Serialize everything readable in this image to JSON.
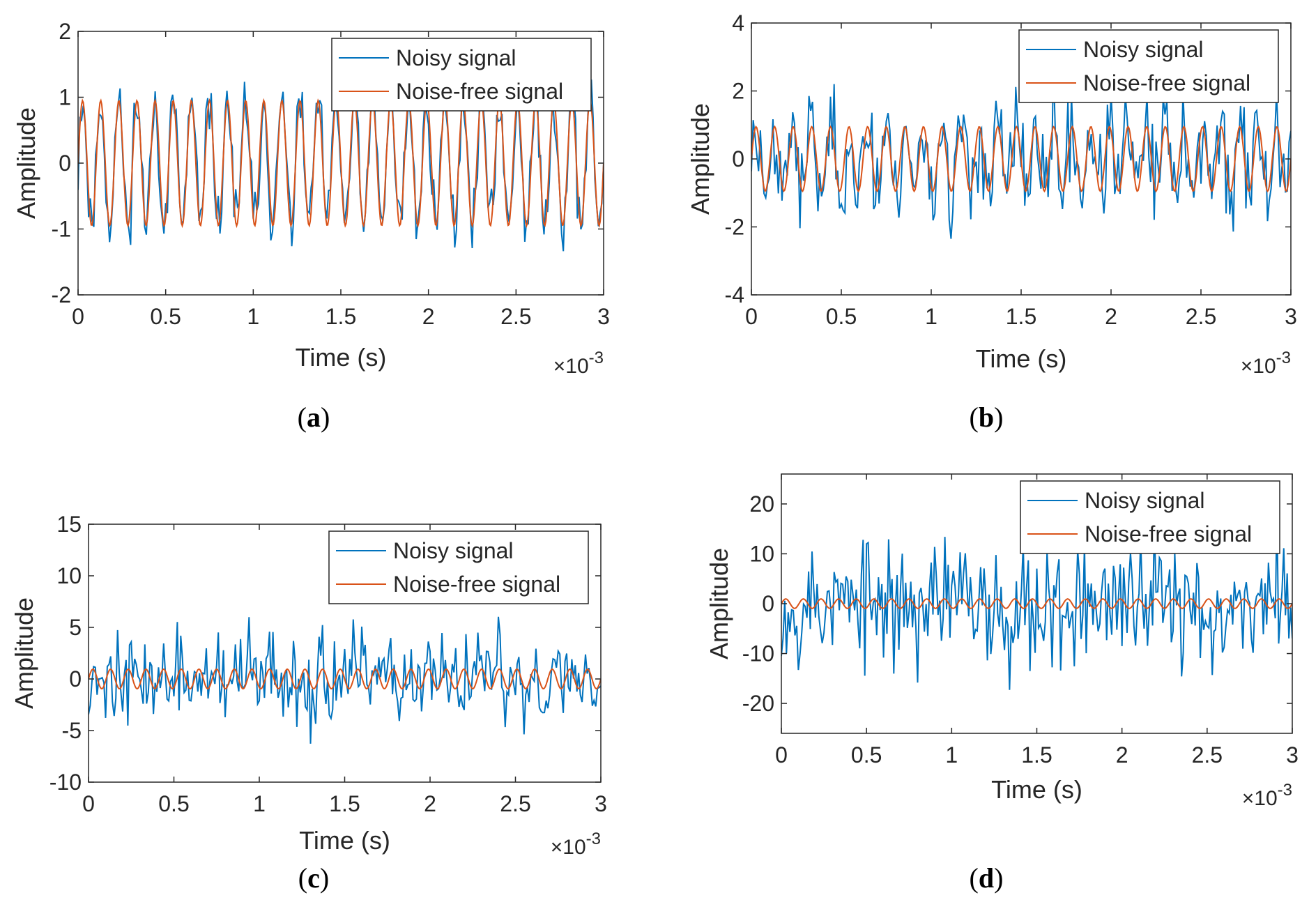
{
  "figure": {
    "subfigure_labels": [
      "a",
      "b",
      "c",
      "d"
    ]
  },
  "colors": {
    "noisy": "#0072BD",
    "clean": "#D95319",
    "axis": "#262626",
    "legend_border": "#262626"
  },
  "chart_data": [
    {
      "id": "a",
      "type": "line",
      "caption": "(a)",
      "xlabel": "Time (s)",
      "ylabel": "Amplitude",
      "xexponent": "×10",
      "xexponent_power": "-3",
      "xlim": [
        0,
        3
      ],
      "ylim": [
        -2,
        2
      ],
      "xticks": [
        0,
        0.5,
        1,
        1.5,
        2,
        2.5,
        3
      ],
      "xtick_labels": [
        "0",
        "0.5",
        "1",
        "1.5",
        "2",
        "2.5",
        "3"
      ],
      "yticks": [
        -2,
        -1,
        0,
        1,
        2
      ],
      "ytick_labels": [
        "-2",
        "-1",
        "0",
        "1",
        "2"
      ],
      "legend": {
        "entries": [
          "Noisy signal",
          "Noise-free signal"
        ],
        "location": "top-right"
      },
      "series": [
        {
          "name": "Noisy signal",
          "kind": "noisy",
          "noise_amplitude": 0.32,
          "n_points": 300,
          "seed": 11
        },
        {
          "name": "Noise-free signal",
          "kind": "clean",
          "amplitude": 0.95,
          "cycles": 29,
          "n_points": 600
        }
      ]
    },
    {
      "id": "b",
      "type": "line",
      "caption": "(b)",
      "xlabel": "Time (s)",
      "ylabel": "Amplitude",
      "xexponent": "×10",
      "xexponent_power": "-3",
      "xlim": [
        0,
        3
      ],
      "ylim": [
        -4,
        4
      ],
      "xticks": [
        0,
        0.5,
        1,
        1.5,
        2,
        2.5,
        3
      ],
      "xtick_labels": [
        "0",
        "0.5",
        "1",
        "1.5",
        "2",
        "2.5",
        "3"
      ],
      "yticks": [
        -4,
        -2,
        0,
        2,
        4
      ],
      "ytick_labels": [
        "-4",
        "-2",
        "0",
        "2",
        "4"
      ],
      "legend": {
        "entries": [
          "Noisy signal",
          "Noise-free signal"
        ],
        "location": "top-right"
      },
      "series": [
        {
          "name": "Noisy signal",
          "kind": "noisy",
          "noise_amplitude": 1.0,
          "n_points": 300,
          "seed": 23
        },
        {
          "name": "Noise-free signal",
          "kind": "clean",
          "amplitude": 0.95,
          "cycles": 29,
          "n_points": 600
        }
      ]
    },
    {
      "id": "c",
      "type": "line",
      "caption": "(c)",
      "xlabel": "Time (s)",
      "ylabel": "Amplitude",
      "xexponent": "×10",
      "xexponent_power": "-3",
      "xlim": [
        0,
        3
      ],
      "ylim": [
        -10,
        15
      ],
      "xticks": [
        0,
        0.5,
        1,
        1.5,
        2,
        2.5,
        3
      ],
      "xtick_labels": [
        "0",
        "0.5",
        "1",
        "1.5",
        "2",
        "2.5",
        "3"
      ],
      "yticks": [
        -10,
        -5,
        0,
        5,
        10,
        15
      ],
      "ytick_labels": [
        "-10",
        "-5",
        "0",
        "5",
        "10",
        "15"
      ],
      "legend": {
        "entries": [
          "Noisy signal",
          "Noise-free signal"
        ],
        "location": "top-right"
      },
      "series": [
        {
          "name": "Noisy signal",
          "kind": "noisy",
          "noise_amplitude": 3.1,
          "n_points": 300,
          "seed": 37
        },
        {
          "name": "Noise-free signal",
          "kind": "clean",
          "amplitude": 0.95,
          "cycles": 29,
          "n_points": 600
        }
      ]
    },
    {
      "id": "d",
      "type": "line",
      "caption": "(d)",
      "xlabel": "Time (s)",
      "ylabel": "Amplitude",
      "xexponent": "×10",
      "xexponent_power": "-3",
      "xlim": [
        0,
        3
      ],
      "ylim": [
        -26,
        26
      ],
      "xticks": [
        0,
        0.5,
        1,
        1.5,
        2,
        2.5,
        3
      ],
      "xtick_labels": [
        "0",
        "0.5",
        "1",
        "1.5",
        "2",
        "2.5",
        "3"
      ],
      "yticks": [
        -20,
        -10,
        0,
        10,
        20
      ],
      "ytick_labels": [
        "-20",
        "-10",
        "0",
        "10",
        "20"
      ],
      "legend": {
        "entries": [
          "Noisy signal",
          "Noise-free signal"
        ],
        "location": "top-right"
      },
      "series": [
        {
          "name": "Noisy signal",
          "kind": "noisy",
          "noise_amplitude": 9.5,
          "n_points": 300,
          "seed": 53
        },
        {
          "name": "Noise-free signal",
          "kind": "clean",
          "amplitude": 0.95,
          "cycles": 29,
          "n_points": 600
        }
      ]
    }
  ]
}
